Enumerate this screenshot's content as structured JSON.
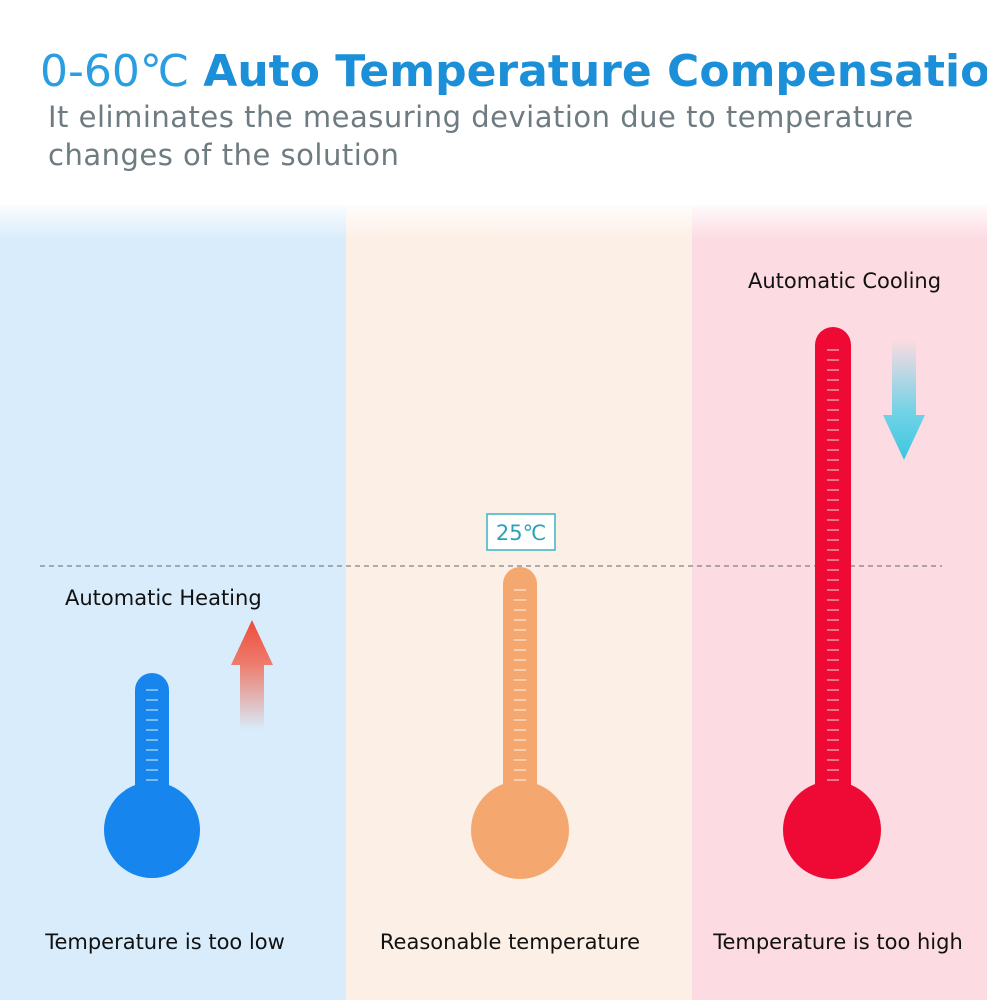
{
  "header": {
    "title_range": "0-60℃",
    "title_text": "Auto Temperature Compensation",
    "subtitle": "It eliminates the measuring deviation due to temperature changes of the solution"
  },
  "panels": [
    {
      "label": "Automatic Heating",
      "caption": "Temperature is too low"
    },
    {
      "badge": "25℃",
      "caption": "Reasonable temperature"
    },
    {
      "label": "Automatic Cooling",
      "caption": "Temperature is too high"
    }
  ]
}
